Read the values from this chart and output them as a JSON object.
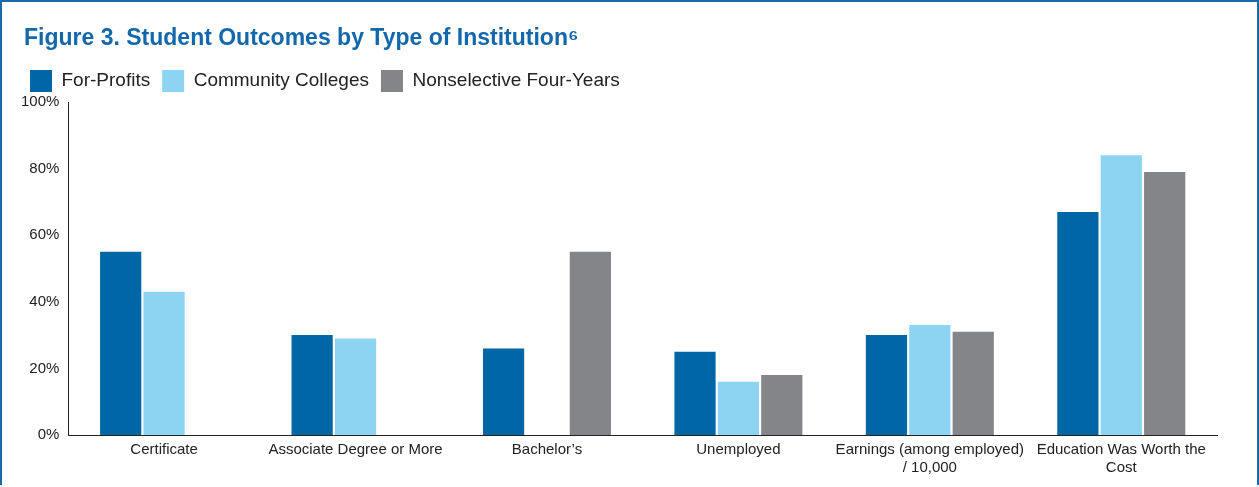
{
  "chart_data": {
    "type": "bar",
    "title": "Figure 3. Student Outcomes by Type of Institution⁶",
    "categories": [
      "Certificate",
      "Associate Degree or More",
      "Bachelor’s",
      "Unemployed",
      "Earnings (among employed) / 10,000",
      "Education Was Worth the Cost"
    ],
    "series": [
      {
        "name": "For-Profits",
        "color": "#0067a6",
        "values": [
          55,
          30,
          26,
          25,
          30,
          67
        ]
      },
      {
        "name": "Community Colleges",
        "color": "#8dd4f2",
        "values": [
          43,
          29,
          null,
          16,
          33,
          84
        ]
      },
      {
        "name": "Nonselective Four-Years",
        "color": "#838589",
        "values": [
          null,
          null,
          55,
          18,
          31,
          79
        ]
      }
    ],
    "ylim": [
      0,
      100
    ],
    "yticks": [
      {
        "value": 0,
        "label": "0%"
      },
      {
        "value": 20,
        "label": "20%"
      },
      {
        "value": 40,
        "label": "40%"
      },
      {
        "value": 60,
        "label": "60%"
      },
      {
        "value": 80,
        "label": "80%"
      },
      {
        "value": 100,
        "label": "100%"
      }
    ],
    "grid": false,
    "legend": "top left"
  }
}
